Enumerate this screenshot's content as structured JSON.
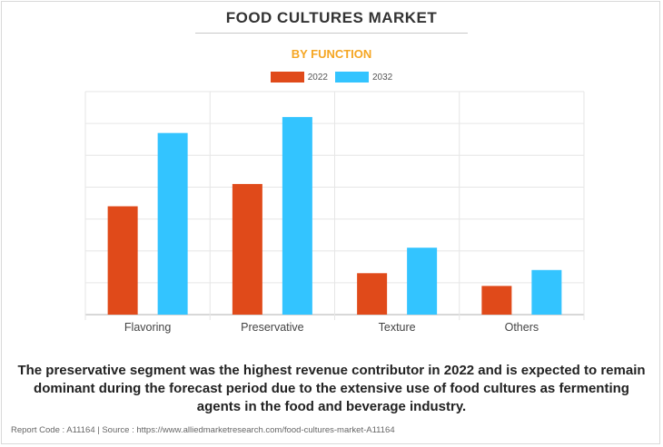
{
  "title": "FOOD CULTURES MARKET",
  "subtitle": "BY FUNCTION",
  "caption": "The preservative segment was the highest revenue contributor in 2022 and is expected to remain dominant during the forecast period due to the extensive use of food cultures as fermenting agents in the food and beverage industry.",
  "footer": "Report Code : A11164  |  Source : https://www.alliedmarketresearch.com/food-cultures-market-A11164",
  "colors": {
    "series_2022": "#e04a1a",
    "series_2032": "#33c4ff",
    "grid": "#e6e6e6",
    "axis": "#b0b0b0"
  },
  "chart_data": {
    "type": "bar",
    "categories": [
      "Flavoring",
      "Preservative",
      "Texture",
      "Others"
    ],
    "series": [
      {
        "name": "2022",
        "values": [
          3.4,
          4.1,
          1.3,
          0.9
        ]
      },
      {
        "name": "2032",
        "values": [
          5.7,
          6.2,
          2.1,
          1.4
        ]
      }
    ],
    "ylim": [
      0,
      7
    ],
    "grid": true,
    "legend_position": "top-center"
  }
}
